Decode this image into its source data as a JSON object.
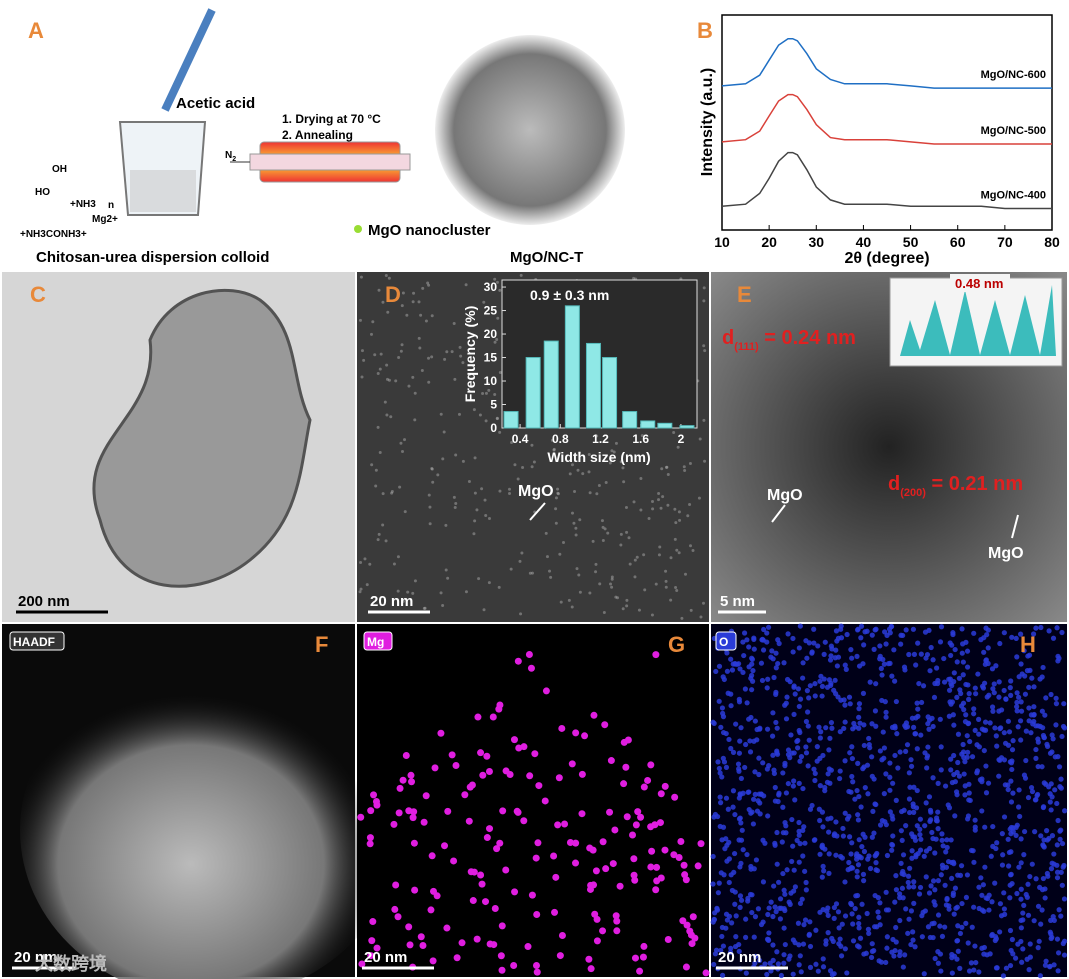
{
  "panel_letters": [
    "A",
    "B",
    "C",
    "D",
    "E",
    "F",
    "G",
    "H"
  ],
  "schematic": {
    "reagent": "Acetic acid",
    "steps": [
      "1. Drying at 70 °C",
      "2. Annealing"
    ],
    "gas": {
      "symbol": "N",
      "sub": "2"
    },
    "legend": "MgO nanocluster",
    "left_caption": "Chitosan-urea dispersion colloid",
    "right_caption": "MgO/NC-T",
    "structure": [
      "OH",
      "HO",
      "+NH3",
      "n",
      "Mg2+",
      "+NH3CONH3+"
    ]
  },
  "chart_data": [
    {
      "type": "line",
      "x_label": "2θ (degree)",
      "y_label": "Intensity (a.u.)",
      "x": [
        10,
        15,
        18,
        20,
        22,
        24,
        25,
        26,
        28,
        30,
        33,
        36,
        40,
        45,
        50,
        55,
        60,
        65,
        70,
        75,
        80
      ],
      "xlim": [
        10,
        80
      ],
      "xticks": [
        10,
        20,
        30,
        40,
        50,
        60,
        70,
        80
      ],
      "ylim": [
        0,
        100
      ],
      "series": [
        {
          "name": "MgO/NC-600",
          "color": "#1f6fc4",
          "values": [
            67,
            68,
            72,
            79,
            86,
            89,
            89,
            88,
            82,
            75,
            70,
            68,
            68,
            68,
            67,
            66,
            66,
            66,
            66,
            66,
            66
          ]
        },
        {
          "name": "MgO/NC-500",
          "color": "#d9413a",
          "values": [
            41,
            42,
            46,
            53,
            60,
            63,
            63,
            62,
            56,
            49,
            43,
            42,
            42,
            42,
            41,
            40,
            40,
            40,
            40,
            40,
            40
          ]
        },
        {
          "name": "MgO/NC-400",
          "color": "#444444",
          "values": [
            11,
            12,
            17,
            24,
            32,
            36,
            36,
            35,
            28,
            20,
            14,
            12,
            12,
            12,
            11,
            11,
            11,
            11,
            10,
            10,
            10
          ]
        }
      ]
    },
    {
      "type": "bar",
      "annotation": "0.9 ± 0.3 nm",
      "x_label": "Width size (nm)",
      "y_label": "Frequency (%)",
      "x": [
        0.31,
        0.53,
        0.71,
        0.92,
        1.13,
        1.29,
        1.49,
        1.67,
        1.84,
        2.06
      ],
      "values": [
        3.5,
        15,
        18.5,
        26,
        18,
        15,
        3.5,
        1.5,
        1,
        0.5
      ],
      "color": "#8fe8e6",
      "xlim": [
        0.22,
        2.16
      ],
      "xticks": [
        0.4,
        0.8,
        1.2,
        1.6,
        2.0
      ],
      "ylim": [
        0,
        31.5
      ],
      "yticks": [
        0,
        5,
        10,
        15,
        20,
        25,
        30
      ]
    }
  ],
  "tem": {
    "C": {
      "scale": "200 nm"
    },
    "D": {
      "scale": "20 nm",
      "label": "MgO"
    },
    "E": {
      "scale": "5 nm",
      "labels": [
        "MgO",
        "MgO"
      ],
      "inset": "0.48 nm",
      "d111": {
        "symbol": "d",
        "sub": "(111)",
        "rest": " = 0.24 nm"
      },
      "d200": {
        "symbol": "d",
        "sub": "(200)",
        "rest": " = 0.21 nm"
      }
    },
    "F": {
      "tag": "HAADF",
      "scale": "20 nm"
    },
    "G": {
      "tag": "Mg",
      "scale": "20 nm"
    },
    "H": {
      "tag": "O",
      "scale": "20 nm"
    }
  },
  "watermark": "大数跨境"
}
